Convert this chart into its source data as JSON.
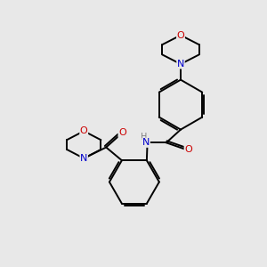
{
  "background_color": "#e8e8e8",
  "bond_color": "#000000",
  "nitrogen_color": "#0000cc",
  "oxygen_color": "#cc0000",
  "h_color": "#808080",
  "line_width": 1.4,
  "figsize": [
    3.0,
    3.0
  ],
  "dpi": 100,
  "xlim": [
    0,
    10
  ],
  "ylim": [
    0,
    10
  ]
}
